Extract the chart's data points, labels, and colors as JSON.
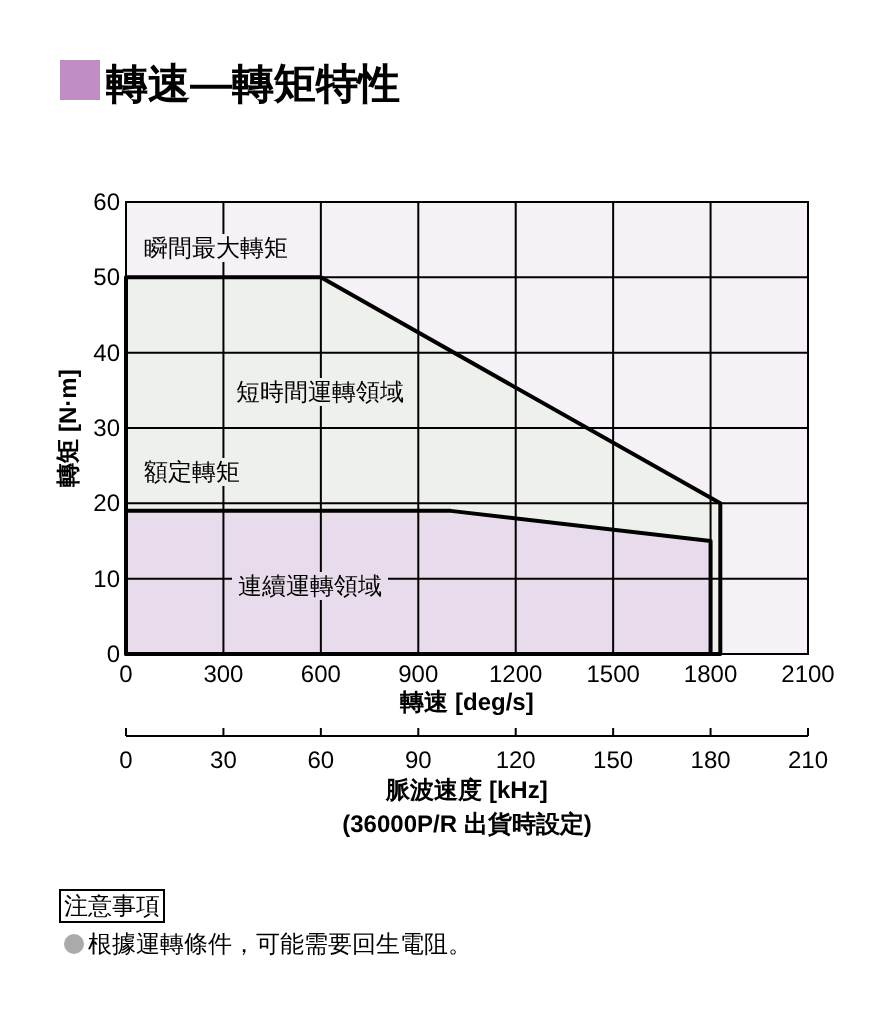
{
  "chart_data": {
    "type": "area",
    "title": "轉速—轉矩特性",
    "xlabel": "轉速 [deg/s]",
    "ylabel": "轉矩 [N·m]",
    "x2label": "脈波速度 [kHz]",
    "xlim": [
      0,
      2100
    ],
    "xticks": [
      0,
      300,
      600,
      900,
      1200,
      1500,
      1800,
      2100
    ],
    "ylim": [
      0,
      60
    ],
    "yticks": [
      0,
      10,
      20,
      30,
      40,
      50,
      60
    ],
    "x2lim": [
      0,
      210
    ],
    "x2ticks": [
      0,
      30,
      60,
      90,
      120,
      150,
      180,
      210
    ],
    "grid": true,
    "series": [
      {
        "color": "#eef0ec",
        "x": [
          0,
          600,
          1830,
          1830
        ],
        "values": [
          50,
          50,
          20,
          0
        ]
      },
      {
        "color": "#e8dbeb",
        "x": [
          0,
          1000,
          1800,
          1800
        ],
        "values": [
          19,
          19,
          15,
          0
        ]
      }
    ],
    "annotations": [
      "瞬間最大轉矩",
      "短時間運轉領域",
      "額定轉矩",
      "連續運轉領域",
      "(36000P/R 出貨時設定)",
      "注意事項",
      "根據運轉條件，可能需要回生電阻。"
    ]
  }
}
